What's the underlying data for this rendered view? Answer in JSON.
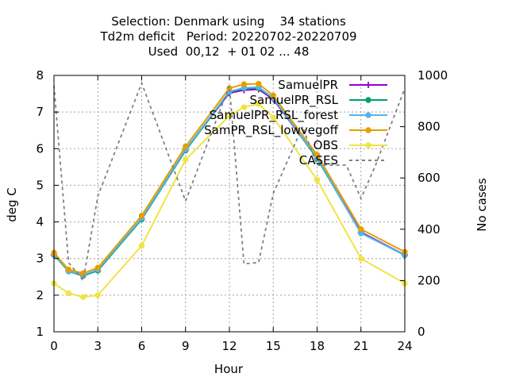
{
  "chart_data": {
    "type": "line",
    "title": [
      "Selection: Denmark using    34 stations",
      "Td2m deficit   Period: 20220702-20220709",
      "Used  00,12  + 01 02 ... 48"
    ],
    "xlabel": "Hour",
    "ylabel": "deg C",
    "y2label": "No cases",
    "xlim": [
      0,
      24
    ],
    "ylim": [
      1,
      8
    ],
    "y2lim": [
      0,
      1000
    ],
    "xticks": [
      "0",
      "3",
      "6",
      "9",
      "12",
      "15",
      "18",
      "21",
      "24"
    ],
    "yticks": [
      "1",
      "2",
      "3",
      "4",
      "5",
      "6",
      "7",
      "8"
    ],
    "y2ticks": [
      "0",
      "200",
      "400",
      "600",
      "800",
      "1000"
    ],
    "grid": true,
    "legend_position": "top-right",
    "x": [
      0,
      1,
      2,
      3,
      6,
      9,
      12,
      13,
      14,
      15,
      18,
      21,
      24
    ],
    "series": [
      {
        "name": "SamuelPR",
        "color": "#9400d3",
        "marker": "plus",
        "axis": "y1",
        "values": [
          3.1,
          2.67,
          2.55,
          2.68,
          4.08,
          5.97,
          7.52,
          7.6,
          7.62,
          7.35,
          5.75,
          3.72,
          3.1
        ]
      },
      {
        "name": "SamuelPR_RSL",
        "color": "#009e73",
        "marker": "star",
        "axis": "y1",
        "values": [
          3.1,
          2.65,
          2.53,
          2.67,
          4.07,
          5.95,
          7.55,
          7.65,
          7.65,
          7.38,
          5.73,
          3.7,
          3.09
        ]
      },
      {
        "name": "SamuelPR_RSL_forest",
        "color": "#56b4e9",
        "marker": "star",
        "axis": "y1",
        "values": [
          3.12,
          2.66,
          2.55,
          2.7,
          4.1,
          5.98,
          7.56,
          7.66,
          7.68,
          7.38,
          5.76,
          3.69,
          3.1
        ]
      },
      {
        "name": "SamPR_RSL_lowvegoff",
        "color": "#e69f00",
        "marker": "star",
        "axis": "y1",
        "values": [
          3.16,
          2.7,
          2.6,
          2.75,
          4.17,
          6.06,
          7.65,
          7.76,
          7.77,
          7.45,
          5.83,
          3.8,
          3.18
        ]
      },
      {
        "name": "OBS",
        "color": "#f0e442",
        "marker": "star",
        "axis": "y1",
        "values": [
          2.32,
          2.05,
          1.95,
          2.0,
          3.35,
          5.7,
          6.9,
          7.13,
          7.22,
          6.85,
          5.15,
          3.0,
          2.32
        ]
      },
      {
        "name": "CASES",
        "color": "#808080",
        "marker": "none",
        "dash": true,
        "axis": "y2",
        "x": [
          0,
          1,
          2,
          3,
          6,
          9,
          12,
          13,
          14,
          15,
          17,
          18,
          20,
          21,
          22,
          24
        ],
        "values": [
          960,
          270,
          200,
          530,
          970,
          510,
          960,
          265,
          270,
          540,
          800,
          650,
          650,
          520,
          650,
          950
        ]
      }
    ]
  }
}
